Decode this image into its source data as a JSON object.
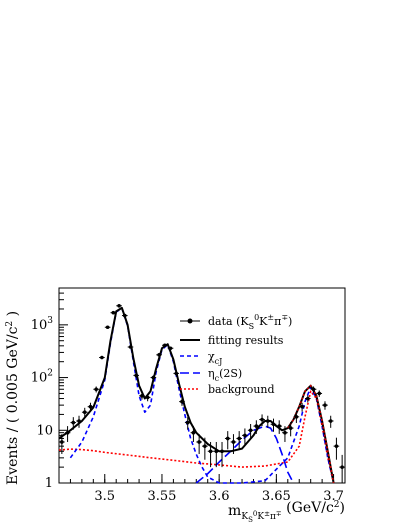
{
  "chart_data": {
    "type": "line",
    "xlabel": "m_{K_S^0 K^± π^∓} (GeV/c²)",
    "ylabel": "Events / ( 0.005 GeV/c² )",
    "xlim": [
      3.46,
      3.71
    ],
    "ylim": [
      1,
      5000
    ],
    "y_scale": "log",
    "x_ticks": [
      3.5,
      3.55,
      3.6,
      3.65,
      3.7
    ],
    "x_tick_labels": [
      "3.5",
      "3.55",
      "3.6",
      "3.65",
      "3.7"
    ],
    "y_ticks": [
      1,
      10,
      100,
      1000
    ],
    "y_tick_labels": [
      "1",
      "10",
      "10²",
      "10³"
    ],
    "legend_position": "top-right",
    "legend": [
      {
        "label": "data (K_S^0 K^± π^∓)",
        "style": "data",
        "color": "#000000"
      },
      {
        "label": "fitting results",
        "style": "solid",
        "color": "#000000"
      },
      {
        "label": "χ_cJ",
        "style": "dashed",
        "color": "#0000ff"
      },
      {
        "label": "η_c(2S)",
        "style": "longdash",
        "color": "#0000ff"
      },
      {
        "label": "background",
        "style": "dotted",
        "color": "#ff0000"
      }
    ],
    "data_points": {
      "x": [
        3.4625,
        3.4675,
        3.4725,
        3.4775,
        3.4825,
        3.4875,
        3.4925,
        3.4975,
        3.5025,
        3.5075,
        3.5125,
        3.5175,
        3.5225,
        3.5275,
        3.5325,
        3.5375,
        3.5425,
        3.5475,
        3.5525,
        3.5575,
        3.5625,
        3.5675,
        3.5725,
        3.5775,
        3.5825,
        3.5875,
        3.5925,
        3.5975,
        3.6025,
        3.6075,
        3.6125,
        3.6175,
        3.6225,
        3.6275,
        3.6325,
        3.6375,
        3.6425,
        3.6475,
        3.6525,
        3.6575,
        3.6625,
        3.6675,
        3.6725,
        3.6775,
        3.6825,
        3.6875,
        3.6925,
        3.6975,
        3.7025,
        3.7075
      ],
      "y": [
        6,
        9,
        14,
        15,
        22,
        28,
        60,
        240,
        900,
        1700,
        2300,
        1500,
        380,
        110,
        45,
        42,
        100,
        270,
        410,
        360,
        120,
        35,
        14,
        9,
        6,
        5,
        4,
        4,
        4,
        7,
        6,
        7,
        8,
        10,
        12,
        16,
        15,
        13,
        12,
        9,
        11,
        18,
        28,
        40,
        60,
        50,
        30,
        15,
        5,
        2
      ]
    },
    "series": [
      {
        "name": "fitting results",
        "style": "solid",
        "color": "#000000",
        "x": [
          3.46,
          3.47,
          3.48,
          3.49,
          3.5,
          3.505,
          3.51,
          3.515,
          3.52,
          3.525,
          3.53,
          3.535,
          3.54,
          3.545,
          3.55,
          3.555,
          3.56,
          3.565,
          3.57,
          3.575,
          3.58,
          3.59,
          3.6,
          3.61,
          3.62,
          3.63,
          3.635,
          3.64,
          3.645,
          3.65,
          3.655,
          3.66,
          3.665,
          3.67,
          3.675,
          3.68,
          3.685,
          3.69,
          3.695,
          3.7
        ],
        "y": [
          7,
          10,
          15,
          27,
          100,
          500,
          1800,
          2100,
          1000,
          230,
          70,
          40,
          55,
          150,
          360,
          430,
          220,
          75,
          28,
          14,
          9,
          5.5,
          4,
          4,
          4.5,
          8,
          12,
          15,
          15,
          12,
          10,
          11,
          16,
          28,
          55,
          70,
          45,
          15,
          4,
          1
        ]
      },
      {
        "name": "χ_cJ",
        "style": "dashed",
        "color": "#0000ff",
        "x": [
          3.47,
          3.48,
          3.49,
          3.5,
          3.505,
          3.51,
          3.515,
          3.52,
          3.525,
          3.53,
          3.535,
          3.54,
          3.545,
          3.55,
          3.555,
          3.56,
          3.565,
          3.57,
          3.575,
          3.58,
          3.585,
          3.59,
          3.6,
          3.61,
          3.62,
          3.64,
          3.66,
          3.67,
          3.675,
          3.68,
          3.685,
          3.69,
          3.695,
          3.7
        ],
        "y": [
          3,
          6,
          18,
          90,
          450,
          1750,
          2050,
          950,
          200,
          45,
          22,
          30,
          130,
          340,
          420,
          200,
          60,
          20,
          7,
          3.5,
          2,
          1.3,
          1,
          1,
          1,
          1.1,
          3,
          12,
          35,
          65,
          40,
          12,
          3,
          1
        ]
      },
      {
        "name": "η_c(2S)",
        "style": "longdash",
        "color": "#0000ff",
        "x": [
          3.58,
          3.59,
          3.6,
          3.61,
          3.62,
          3.63,
          3.64,
          3.645,
          3.65,
          3.655,
          3.66,
          3.665
        ],
        "y": [
          1,
          1.5,
          2.5,
          4,
          6.5,
          10,
          12,
          11,
          7,
          3.5,
          1.6,
          1
        ]
      },
      {
        "name": "background",
        "style": "dotted",
        "color": "#ff0000",
        "x": [
          3.46,
          3.47,
          3.48,
          3.49,
          3.5,
          3.52,
          3.54,
          3.56,
          3.58,
          3.6,
          3.62,
          3.64,
          3.66,
          3.67,
          3.675,
          3.68,
          3.685,
          3.69,
          3.695,
          3.7
        ],
        "y": [
          4.2,
          4.4,
          4.3,
          4.1,
          3.8,
          3.4,
          3.0,
          2.7,
          2.4,
          2.2,
          2.0,
          2.1,
          2.5,
          5,
          18,
          55,
          40,
          12,
          3,
          1
        ]
      }
    ]
  }
}
